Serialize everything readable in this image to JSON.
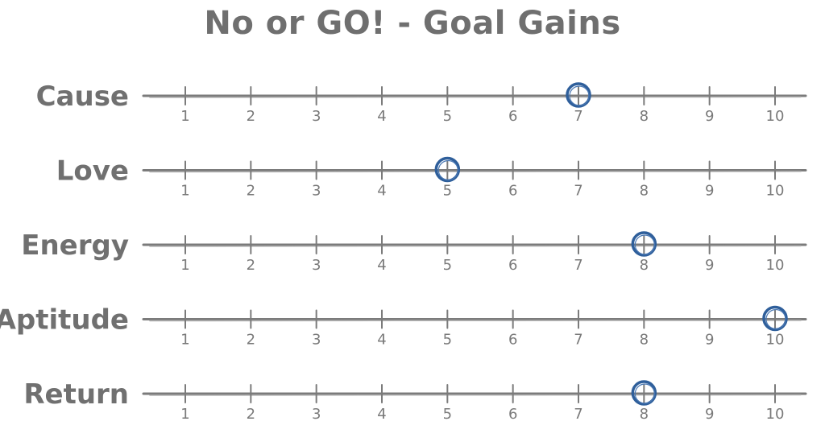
{
  "chart_data": {
    "type": "scatter",
    "title": "No or GO! - Goal Gains",
    "xlabel": "",
    "ylabel": "",
    "xlim": [
      1,
      10
    ],
    "ticks": [
      1,
      2,
      3,
      4,
      5,
      6,
      7,
      8,
      9,
      10
    ],
    "grid": false,
    "rows": [
      {
        "label": "Cause",
        "value": 7
      },
      {
        "label": "Love",
        "value": 5
      },
      {
        "label": "Energy",
        "value": 8
      },
      {
        "label": "Aptitude",
        "value": 10
      },
      {
        "label": "Return",
        "value": 8
      }
    ],
    "colors": {
      "marker": "#2f5f9b",
      "axis": "#7b7b7b",
      "text": "#707070"
    }
  }
}
